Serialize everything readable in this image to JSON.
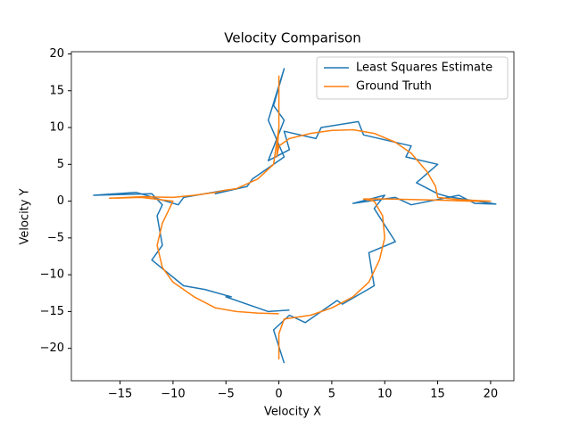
{
  "chart_data": {
    "type": "line",
    "title": "Velocity Comparison",
    "x_label": "Velocity X",
    "y_label": "Velocity Y",
    "xlim": [
      -19.6,
      22.2
    ],
    "ylim": [
      -24.4,
      20.3
    ],
    "xticks": [
      {
        "value": -15,
        "label": "−15"
      },
      {
        "value": -10,
        "label": "−10"
      },
      {
        "value": -5,
        "label": "−5"
      },
      0,
      5,
      10,
      15,
      20
    ],
    "yticks": [
      {
        "value": -20,
        "label": "−20"
      },
      {
        "value": -15,
        "label": "−15"
      },
      {
        "value": -10,
        "label": "−10"
      },
      {
        "value": -5,
        "label": "−5"
      },
      0,
      5,
      10,
      15,
      20
    ],
    "legend": "upper right",
    "series": [
      {
        "name": "Least Squares Estimate",
        "color": "#1f77b4",
        "x": [
          0.5,
          -0.5,
          1,
          2.5,
          5.5,
          6,
          9,
          8.5,
          11,
          9,
          10,
          7,
          11,
          12.5,
          17,
          18.5,
          20.5,
          16,
          15,
          13,
          15,
          12,
          12.5,
          8,
          7.5,
          4,
          3.5,
          0.5,
          1,
          -1,
          0.5,
          -0.5,
          0.5,
          -1,
          0.5,
          -2.5,
          -3,
          -6,
          -5,
          -9,
          -9.5,
          -13.5,
          -17.5,
          -12,
          -11,
          -11.5,
          -11,
          -12,
          -9,
          -7,
          -4.5,
          -5,
          -1,
          1
        ],
        "values": [
          -22,
          -17.5,
          -15.5,
          -16.5,
          -13.5,
          -14,
          -11.5,
          -7,
          -5.5,
          -1,
          0.8,
          -0.3,
          0.5,
          -0.5,
          0.8,
          -0.3,
          -0.4,
          0.6,
          1,
          2.5,
          5,
          6,
          7.5,
          9,
          10.8,
          10,
          8.5,
          9.5,
          7,
          5.5,
          11,
          13,
          18,
          11,
          6,
          3,
          2,
          1,
          1.5,
          0.5,
          -0.5,
          1.2,
          0.8,
          1,
          -0.5,
          -2,
          -6,
          -8,
          -11.5,
          -12,
          -13,
          -13,
          -15,
          -14.8
        ]
      },
      {
        "name": "Ground Truth",
        "color": "#ff7f0e",
        "x": [
          0,
          0,
          0.5,
          3,
          5,
          7,
          8.5,
          9.5,
          10,
          9.8,
          9,
          8,
          10,
          13,
          16,
          18,
          20,
          17,
          15,
          14.8,
          14,
          12.5,
          11,
          9,
          7,
          5,
          3,
          1,
          0,
          -0.2,
          0,
          0,
          0,
          0,
          -0.5,
          -2,
          -4,
          -5,
          -6,
          -8,
          -10,
          -13,
          -16,
          -13,
          -10,
          -11,
          -11.5,
          -11,
          -10,
          -8,
          -6,
          -4,
          -2,
          0
        ],
        "values": [
          -21.5,
          -18,
          -16,
          -15.5,
          -14.5,
          -13,
          -11,
          -8,
          -5,
          -2,
          0,
          0.3,
          0.3,
          0.2,
          0.1,
          0,
          0,
          0.2,
          0.5,
          2,
          4,
          6.5,
          8,
          9.2,
          9.7,
          9.6,
          9.2,
          8.5,
          7.5,
          6,
          10,
          14,
          17,
          10,
          5,
          3,
          1.7,
          1.5,
          1.2,
          0.8,
          0.5,
          0.6,
          0.4,
          0.5,
          0,
          -3,
          -6,
          -9,
          -11,
          -13,
          -14.5,
          -15,
          -15.2,
          -15.3
        ]
      }
    ]
  }
}
